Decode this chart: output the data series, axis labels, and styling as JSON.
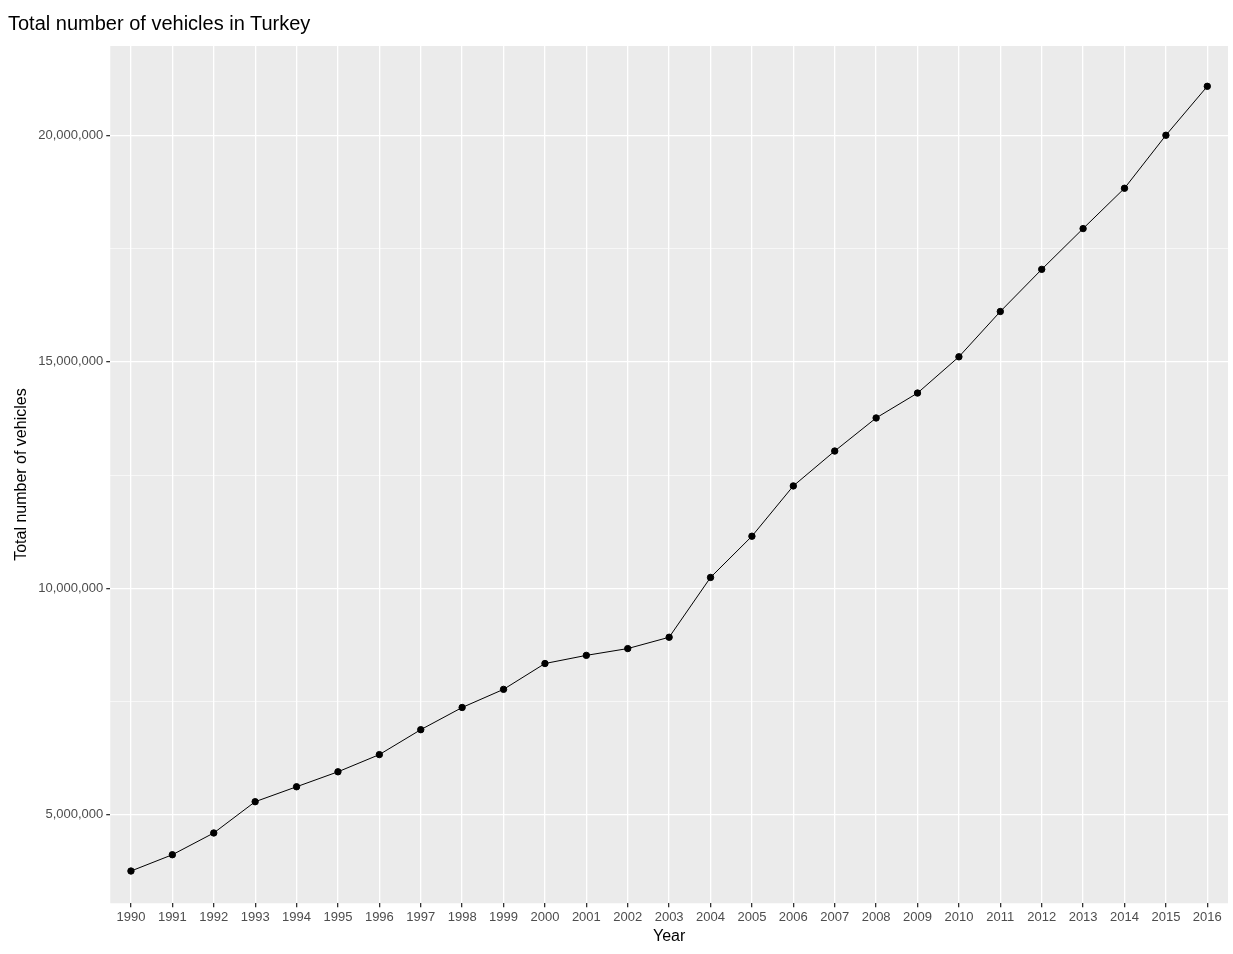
{
  "chart_data": {
    "type": "line",
    "title": "Total number of vehicles in Turkey",
    "xlabel": "Year",
    "ylabel": "Total number of vehicles",
    "categories": [
      "1990",
      "1991",
      "1992",
      "1993",
      "1994",
      "1995",
      "1996",
      "1997",
      "1998",
      "1999",
      "2000",
      "2001",
      "2002",
      "2003",
      "2004",
      "2005",
      "2006",
      "2007",
      "2008",
      "2009",
      "2010",
      "2011",
      "2012",
      "2013",
      "2014",
      "2015",
      "2016"
    ],
    "series": [
      {
        "color": "#000000",
        "values": [
          3760000,
          4120000,
          4600000,
          5290000,
          5620000,
          5950000,
          6330000,
          6880000,
          7370000,
          7770000,
          8340000,
          8520000,
          8670000,
          8920000,
          10240000,
          11150000,
          12260000,
          13030000,
          13760000,
          14310000,
          15110000,
          16110000,
          17040000,
          17940000,
          18830000,
          20000000,
          21080000
        ]
      }
    ],
    "ylim": [
      3050000,
      21970000
    ],
    "yticks": [
      {
        "value": 5000000,
        "label": "5,000,000"
      },
      {
        "value": 7500000,
        "label": null
      },
      {
        "value": 10000000,
        "label": "10,000,000"
      },
      {
        "value": 12500000,
        "label": null
      },
      {
        "value": 15000000,
        "label": "15,000,000"
      },
      {
        "value": 17500000,
        "label": null
      },
      {
        "value": 20000000,
        "label": "20,000,000"
      }
    ],
    "grid": true,
    "legend": false,
    "marker": "circle",
    "line_style": "solid"
  }
}
